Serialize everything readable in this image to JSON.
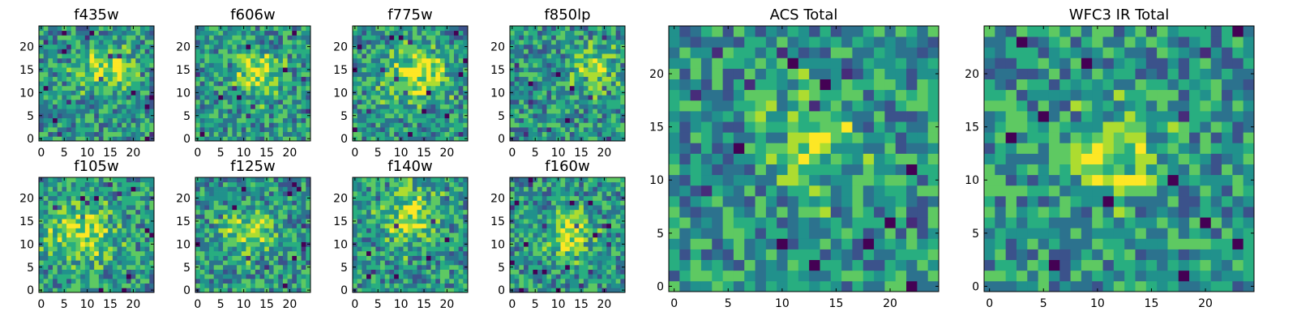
{
  "chart_data": [
    {
      "type": "heatmap",
      "title": "f435w",
      "xlim": [
        -0.5,
        24.5
      ],
      "ylim": [
        -0.5,
        24.5
      ],
      "xticks": [
        0,
        5,
        10,
        15,
        20
      ],
      "yticks": [
        0,
        5,
        10,
        15,
        20
      ],
      "colormap": "viridis",
      "grid": false,
      "shape": [
        25,
        25
      ],
      "peak_region": {
        "x": [
          10,
          18
        ],
        "y": [
          12,
          18
        ]
      }
    },
    {
      "type": "heatmap",
      "title": "f606w",
      "xlim": [
        -0.5,
        24.5
      ],
      "ylim": [
        -0.5,
        24.5
      ],
      "xticks": [
        0,
        5,
        10,
        15,
        20
      ],
      "yticks": [
        0,
        5,
        10,
        15,
        20
      ],
      "colormap": "viridis",
      "grid": false,
      "shape": [
        25,
        25
      ],
      "peak_region": {
        "x": [
          10,
          17
        ],
        "y": [
          11,
          17
        ]
      }
    },
    {
      "type": "heatmap",
      "title": "f775w",
      "xlim": [
        -0.5,
        24.5
      ],
      "ylim": [
        -0.5,
        24.5
      ],
      "xticks": [
        0,
        5,
        10,
        15,
        20
      ],
      "yticks": [
        0,
        5,
        10,
        15,
        20
      ],
      "colormap": "viridis",
      "grid": false,
      "shape": [
        25,
        25
      ],
      "peak_region": {
        "x": [
          8,
          18
        ],
        "y": [
          10,
          18
        ]
      }
    },
    {
      "type": "heatmap",
      "title": "f850lp",
      "xlim": [
        -0.5,
        24.5
      ],
      "ylim": [
        -0.5,
        24.5
      ],
      "xticks": [
        0,
        5,
        10,
        15,
        20
      ],
      "yticks": [
        0,
        5,
        10,
        15,
        20
      ],
      "colormap": "viridis",
      "grid": false,
      "shape": [
        25,
        25
      ],
      "peak_region": {
        "x": [
          14,
          20
        ],
        "y": [
          12,
          18
        ]
      }
    },
    {
      "type": "heatmap",
      "title": "ACS Total",
      "xlim": [
        -0.5,
        24.5
      ],
      "ylim": [
        -0.5,
        24.5
      ],
      "xticks": [
        0,
        5,
        10,
        15,
        20
      ],
      "yticks": [
        0,
        5,
        10,
        15,
        20
      ],
      "colormap": "viridis",
      "grid": false,
      "shape": [
        25,
        25
      ],
      "peak_region": {
        "x": [
          11,
          15
        ],
        "y": [
          11,
          17
        ]
      }
    },
    {
      "type": "heatmap",
      "title": "f105w",
      "xlim": [
        -0.5,
        24.5
      ],
      "ylim": [
        -0.5,
        24.5
      ],
      "xticks": [
        0,
        5,
        10,
        15,
        20
      ],
      "yticks": [
        0,
        5,
        10,
        15,
        20
      ],
      "colormap": "viridis",
      "grid": false,
      "shape": [
        25,
        25
      ],
      "peak_region": {
        "x": [
          3,
          15
        ],
        "y": [
          8,
          16
        ]
      }
    },
    {
      "type": "heatmap",
      "title": "f125w",
      "xlim": [
        -0.5,
        24.5
      ],
      "ylim": [
        -0.5,
        24.5
      ],
      "xticks": [
        0,
        5,
        10,
        15,
        20
      ],
      "yticks": [
        0,
        5,
        10,
        15,
        20
      ],
      "colormap": "viridis",
      "grid": false,
      "shape": [
        25,
        25
      ],
      "peak_region": {
        "x": [
          8,
          15
        ],
        "y": [
          10,
          16
        ]
      }
    },
    {
      "type": "heatmap",
      "title": "f140w",
      "xlim": [
        -0.5,
        24.5
      ],
      "ylim": [
        -0.5,
        24.5
      ],
      "xticks": [
        0,
        5,
        10,
        15,
        20
      ],
      "yticks": [
        0,
        5,
        10,
        15,
        20
      ],
      "colormap": "viridis",
      "grid": false,
      "shape": [
        25,
        25
      ],
      "peak_region": {
        "x": [
          8,
          16
        ],
        "y": [
          12,
          20
        ]
      }
    },
    {
      "type": "heatmap",
      "title": "f160w",
      "xlim": [
        -0.5,
        24.5
      ],
      "ylim": [
        -0.5,
        24.5
      ],
      "xticks": [
        0,
        5,
        10,
        15,
        20
      ],
      "yticks": [
        0,
        5,
        10,
        15,
        20
      ],
      "colormap": "viridis",
      "grid": false,
      "shape": [
        25,
        25
      ],
      "peak_region": {
        "x": [
          10,
          15
        ],
        "y": [
          8,
          16
        ]
      }
    },
    {
      "type": "heatmap",
      "title": "WFC3 IR Total",
      "xlim": [
        -0.5,
        24.5
      ],
      "ylim": [
        -0.5,
        24.5
      ],
      "xticks": [
        0,
        5,
        10,
        15,
        20
      ],
      "yticks": [
        0,
        5,
        10,
        15,
        20
      ],
      "colormap": "viridis",
      "grid": false,
      "shape": [
        25,
        25
      ],
      "peak_region": {
        "x": [
          9,
          14
        ],
        "y": [
          10,
          15
        ]
      }
    }
  ],
  "colors": {
    "viridis": [
      "#440154",
      "#472c7a",
      "#3b528b",
      "#2c728e",
      "#21918c",
      "#28ae80",
      "#5ec962",
      "#addc30",
      "#fde725"
    ],
    "axis": "#000000",
    "background": "#ffffff"
  }
}
